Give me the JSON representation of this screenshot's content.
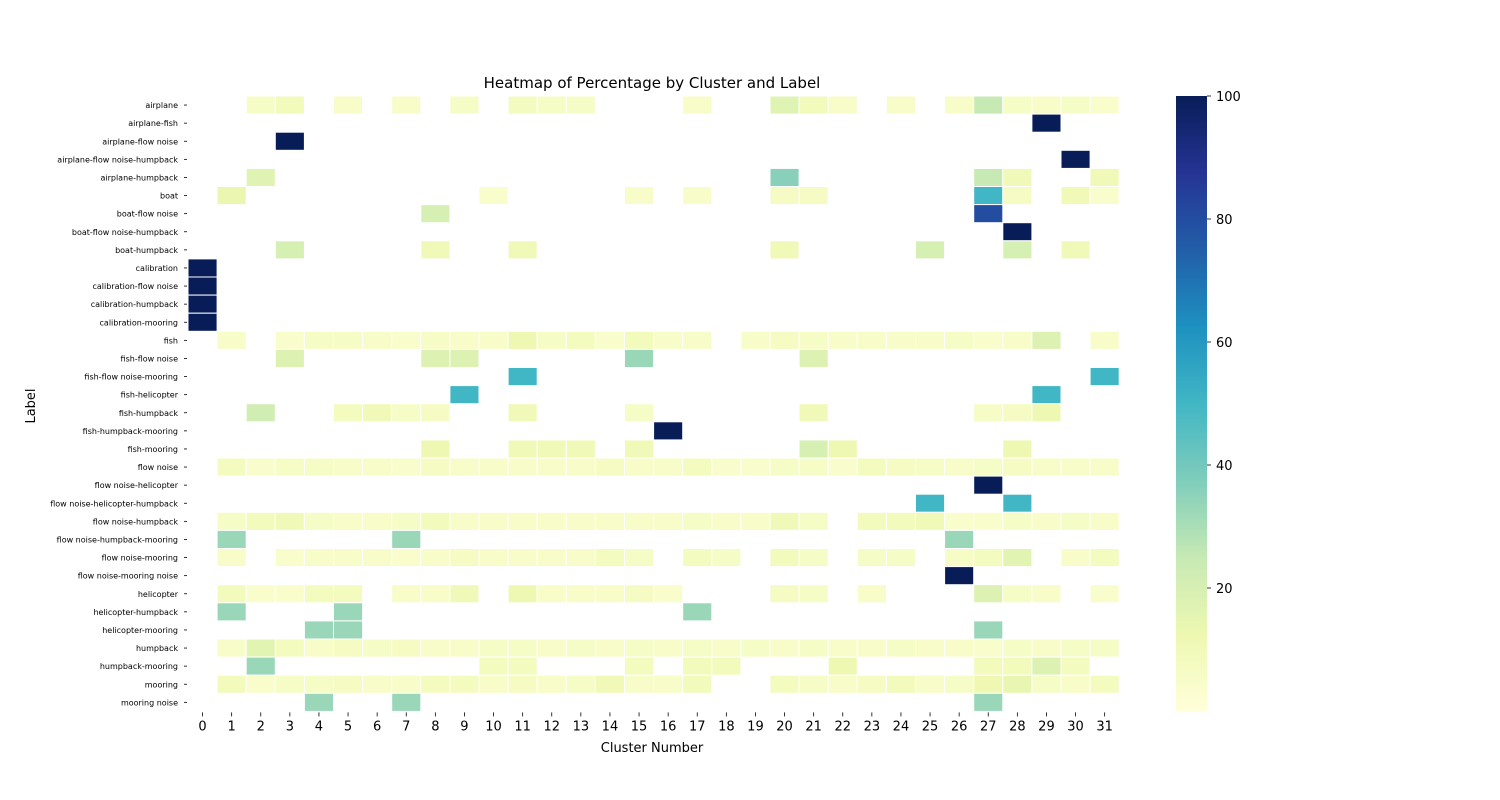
{
  "chart_data": {
    "type": "heatmap",
    "title": "Heatmap of Percentage by Cluster and Label",
    "xlabel": "Cluster Number",
    "ylabel": "Label",
    "x_categories": [
      "0",
      "1",
      "2",
      "3",
      "4",
      "5",
      "6",
      "7",
      "8",
      "9",
      "10",
      "11",
      "12",
      "13",
      "14",
      "15",
      "16",
      "17",
      "18",
      "19",
      "20",
      "21",
      "22",
      "23",
      "24",
      "25",
      "26",
      "27",
      "28",
      "29",
      "30",
      "31"
    ],
    "y_categories": [
      "airplane",
      "airplane-fish",
      "airplane-flow noise",
      "airplane-flow noise-humpback",
      "airplane-humpback",
      "boat",
      "boat-flow noise",
      "boat-flow noise-humpback",
      "boat-humpback",
      "calibration",
      "calibration-flow noise",
      "calibration-humpback",
      "calibration-mooring",
      "fish",
      "fish-flow noise",
      "fish-flow noise-mooring",
      "fish-helicopter",
      "fish-humpback",
      "fish-humpback-mooring",
      "fish-mooring",
      "flow noise",
      "flow noise-helicopter",
      "flow noise-helicopter-humpback",
      "flow noise-humpback",
      "flow noise-humpback-mooring",
      "flow noise-mooring",
      "flow noise-mooring noise",
      "helicopter",
      "helicopter-humpback",
      "helicopter-mooring",
      "humpback",
      "humpback-mooring",
      "mooring",
      "mooring noise"
    ],
    "colorbar": {
      "min": 0,
      "max": 100,
      "ticks": [
        20,
        40,
        60,
        80,
        100
      ],
      "colormap": "YlGnBu"
    },
    "cells": [
      {
        "label": "airplane",
        "values": {
          "2": 6,
          "3": 9,
          "5": 5,
          "7": 5,
          "9": 6,
          "11": 8,
          "12": 6,
          "13": 6,
          "17": 5,
          "20": 17,
          "21": 9,
          "22": 5,
          "24": 5,
          "26": 5,
          "27": 25,
          "28": 6,
          "29": 5,
          "30": 6,
          "31": 4
        }
      },
      {
        "label": "airplane-fish",
        "values": {
          "29": 100
        }
      },
      {
        "label": "airplane-flow noise",
        "values": {
          "3": 100
        }
      },
      {
        "label": "airplane-flow noise-humpback",
        "values": {
          "30": 100
        }
      },
      {
        "label": "airplane-humpback",
        "values": {
          "2": 17,
          "20": 36,
          "27": 25,
          "28": 10,
          "31": 10
        }
      },
      {
        "label": "boat",
        "values": {
          "1": 13,
          "10": 4,
          "15": 5,
          "17": 5,
          "20": 7,
          "21": 7,
          "27": 50,
          "28": 7,
          "30": 10,
          "31": 4
        }
      },
      {
        "label": "boat-flow noise",
        "values": {
          "8": 20,
          "27": 80
        }
      },
      {
        "label": "boat-flow noise-humpback",
        "values": {
          "28": 100
        }
      },
      {
        "label": "boat-humpback",
        "values": {
          "3": 20,
          "8": 10,
          "11": 10,
          "20": 10,
          "25": 20,
          "28": 20,
          "30": 10
        }
      },
      {
        "label": "calibration",
        "values": {
          "0": 100
        }
      },
      {
        "label": "calibration-flow noise",
        "values": {
          "0": 100
        }
      },
      {
        "label": "calibration-humpback",
        "values": {
          "0": 100
        }
      },
      {
        "label": "calibration-mooring",
        "values": {
          "0": 100
        }
      },
      {
        "label": "fish",
        "values": {
          "1": 5,
          "3": 4,
          "4": 6,
          "5": 6,
          "6": 5,
          "7": 4,
          "8": 6,
          "9": 5,
          "10": 5,
          "11": 12,
          "12": 6,
          "13": 8,
          "14": 4,
          "15": 9,
          "16": 5,
          "17": 5,
          "19": 5,
          "20": 7,
          "21": 6,
          "22": 5,
          "23": 5,
          "24": 5,
          "25": 5,
          "26": 6,
          "27": 4,
          "28": 5,
          "29": 18,
          "31": 5
        }
      },
      {
        "label": "fish-flow noise",
        "values": {
          "3": 18,
          "8": 18,
          "9": 18,
          "15": 33,
          "21": 18
        }
      },
      {
        "label": "fish-flow noise-mooring",
        "values": {
          "11": 50,
          "31": 50
        }
      },
      {
        "label": "fish-helicopter",
        "values": {
          "9": 50,
          "29": 50
        }
      },
      {
        "label": "fish-humpback",
        "values": {
          "2": 22,
          "5": 8,
          "6": 10,
          "7": 6,
          "8": 7,
          "11": 10,
          "15": 6,
          "21": 10,
          "27": 6,
          "28": 7,
          "29": 12
        }
      },
      {
        "label": "fish-humpback-mooring",
        "values": {
          "16": 100
        }
      },
      {
        "label": "fish-mooring",
        "values": {
          "8": 12,
          "11": 10,
          "12": 10,
          "13": 10,
          "15": 10,
          "21": 20,
          "22": 12,
          "28": 12
        }
      },
      {
        "label": "flow noise",
        "values": {
          "1": 8,
          "2": 4,
          "3": 6,
          "4": 6,
          "5": 5,
          "6": 5,
          "7": 4,
          "8": 7,
          "9": 5,
          "10": 5,
          "11": 5,
          "12": 5,
          "13": 5,
          "14": 7,
          "15": 5,
          "16": 5,
          "17": 8,
          "18": 4,
          "19": 4,
          "20": 6,
          "21": 6,
          "22": 4,
          "23": 8,
          "24": 7,
          "25": 6,
          "26": 5,
          "27": 6,
          "28": 7,
          "29": 5,
          "30": 5,
          "31": 5
        }
      },
      {
        "label": "flow noise-helicopter",
        "values": {
          "27": 100
        }
      },
      {
        "label": "flow noise-helicopter-humpback",
        "values": {
          "25": 50,
          "28": 50
        }
      },
      {
        "label": "flow noise-humpback",
        "values": {
          "1": 6,
          "2": 9,
          "3": 10,
          "4": 6,
          "5": 5,
          "6": 5,
          "7": 6,
          "8": 9,
          "9": 5,
          "10": 5,
          "11": 5,
          "12": 5,
          "13": 5,
          "14": 5,
          "15": 5,
          "16": 5,
          "17": 6,
          "18": 5,
          "19": 5,
          "20": 10,
          "21": 6,
          "23": 9,
          "24": 9,
          "25": 10,
          "26": 4,
          "27": 4,
          "28": 6,
          "29": 5,
          "30": 6,
          "31": 5
        }
      },
      {
        "label": "flow noise-humpback-mooring",
        "values": {
          "1": 33,
          "7": 33,
          "26": 33
        }
      },
      {
        "label": "flow noise-mooring",
        "values": {
          "1": 5,
          "3": 4,
          "4": 5,
          "5": 5,
          "6": 5,
          "7": 4,
          "8": 5,
          "9": 7,
          "10": 5,
          "11": 5,
          "12": 5,
          "13": 5,
          "14": 8,
          "15": 6,
          "17": 8,
          "18": 6,
          "20": 9,
          "21": 6,
          "23": 6,
          "24": 6,
          "26": 6,
          "27": 8,
          "28": 16,
          "30": 5,
          "31": 8
        }
      },
      {
        "label": "flow noise-mooring noise",
        "values": {
          "26": 100
        }
      },
      {
        "label": "helicopter",
        "values": {
          "1": 9,
          "2": 4,
          "3": 4,
          "4": 8,
          "5": 8,
          "7": 5,
          "8": 5,
          "9": 10,
          "11": 12,
          "12": 5,
          "13": 5,
          "14": 5,
          "15": 7,
          "16": 4,
          "20": 7,
          "21": 6,
          "23": 5,
          "27": 18,
          "28": 6,
          "29": 5,
          "31": 4
        }
      },
      {
        "label": "helicopter-humpback",
        "values": {
          "1": 33,
          "5": 33,
          "17": 33
        }
      },
      {
        "label": "helicopter-mooring",
        "values": {
          "4": 33,
          "5": 33,
          "27": 33
        }
      },
      {
        "label": "humpback",
        "values": {
          "1": 5,
          "2": 16,
          "3": 8,
          "4": 5,
          "5": 7,
          "6": 6,
          "7": 7,
          "8": 5,
          "9": 5,
          "10": 6,
          "11": 6,
          "12": 5,
          "13": 6,
          "14": 5,
          "15": 6,
          "16": 5,
          "17": 6,
          "18": 5,
          "19": 6,
          "20": 5,
          "21": 6,
          "22": 5,
          "23": 5,
          "24": 6,
          "25": 5,
          "26": 5,
          "27": 4,
          "28": 6,
          "29": 5,
          "30": 6,
          "31": 6
        }
      },
      {
        "label": "humpback-mooring",
        "values": {
          "2": 33,
          "10": 8,
          "11": 8,
          "15": 8,
          "17": 9,
          "18": 9,
          "22": 12,
          "27": 9,
          "28": 9,
          "29": 18,
          "30": 8
        }
      },
      {
        "label": "mooring",
        "values": {
          "1": 9,
          "2": 4,
          "3": 6,
          "4": 6,
          "5": 7,
          "6": 5,
          "7": 5,
          "8": 8,
          "9": 8,
          "10": 5,
          "11": 7,
          "12": 5,
          "13": 6,
          "14": 10,
          "15": 5,
          "16": 5,
          "17": 9,
          "20": 8,
          "21": 6,
          "22": 5,
          "23": 7,
          "24": 9,
          "25": 5,
          "26": 6,
          "27": 12,
          "28": 14,
          "29": 6,
          "30": 5,
          "31": 8
        }
      },
      {
        "label": "mooring noise",
        "values": {
          "4": 33,
          "7": 33,
          "27": 33
        }
      }
    ]
  }
}
